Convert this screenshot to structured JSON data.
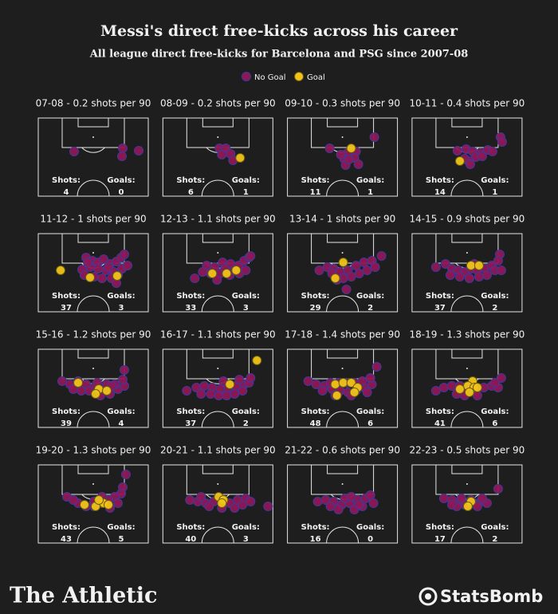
{
  "header": {
    "title": "Messi's direct free-kicks across his career",
    "subtitle": "All league direct free-kicks for Barcelona and PSG since 2007-08"
  },
  "series": [
    {
      "name": "No Goal",
      "color": "#8e1756"
    },
    {
      "name": "Goal",
      "color": "#f0c419"
    }
  ],
  "chart_data": [
    {
      "type": "scatter",
      "title": "07-08 - 0.2 shots per 90",
      "xlim": [
        0,
        138
      ],
      "ylim": [
        0,
        98
      ],
      "shots_label": "Shots:",
      "shots": 4,
      "goals_label": "Goals:",
      "goals": 0,
      "series": [
        {
          "x": [
            45,
            106,
            105,
            126
          ],
          "y": [
            42,
            38,
            48,
            41
          ]
        },
        {
          "x": [],
          "y": []
        }
      ]
    },
    {
      "type": "scatter",
      "title": "08-09 - 0.2 shots per 90",
      "xlim": [
        0,
        138
      ],
      "ylim": [
        0,
        98
      ],
      "shots_label": "Shots:",
      "shots": 6,
      "goals_label": "Goals:",
      "goals": 1,
      "series": [
        {
          "x": [
            71,
            79,
            74,
            85,
            88
          ],
          "y": [
            38,
            38,
            46,
            45,
            53
          ]
        },
        {
          "x": [
            97
          ],
          "y": [
            50
          ]
        }
      ]
    },
    {
      "type": "scatter",
      "title": "09-10 - 0.3 shots per 90",
      "xlim": [
        0,
        138
      ],
      "ylim": [
        0,
        98
      ],
      "shots_label": "Shots:",
      "shots": 11,
      "goals_label": "Goals:",
      "goals": 1,
      "series": [
        {
          "x": [
            109,
            53,
            75,
            86,
            71,
            84,
            73,
            89,
            77,
            67
          ],
          "y": [
            24,
            38,
            44,
            42,
            51,
            50,
            59,
            58,
            52,
            46
          ]
        },
        {
          "x": [
            80
          ],
          "y": [
            38
          ]
        }
      ]
    },
    {
      "type": "scatter",
      "title": "10-11 - 0.4 shots per 90",
      "xlim": [
        0,
        138
      ],
      "ylim": [
        0,
        98
      ],
      "shots_label": "Shots:",
      "shots": 14,
      "goals_label": "Goals:",
      "goals": 1,
      "series": [
        {
          "x": [
            111,
            113,
            57,
            68,
            76,
            86,
            95,
            101,
            80,
            71,
            66,
            88,
            73
          ],
          "y": [
            24,
            30,
            41,
            39,
            42,
            44,
            40,
            42,
            49,
            54,
            51,
            48,
            58
          ]
        },
        {
          "x": [
            60
          ],
          "y": [
            54
          ]
        }
      ]
    },
    {
      "type": "scatter",
      "title": "11-12 - 1 shots per 90",
      "xlim": [
        0,
        138
      ],
      "ylim": [
        0,
        98
      ],
      "shots_label": "Shots:",
      "shots": 37,
      "goals_label": "Goals:",
      "goals": 3,
      "series": [
        {
          "x": [
            60,
            68,
            75,
            82,
            90,
            98,
            104,
            108,
            105,
            95,
            85,
            75,
            65,
            55,
            58,
            70,
            80,
            92,
            100,
            88,
            62,
            112,
            98
          ],
          "y": [
            30,
            34,
            36,
            32,
            38,
            35,
            30,
            26,
            44,
            48,
            46,
            44,
            42,
            45,
            52,
            54,
            56,
            56,
            52,
            42,
            36,
            40,
            62
          ]
        },
        {
          "x": [
            28,
            99,
            65
          ],
          "y": [
            46,
            53,
            55
          ]
        }
      ]
    },
    {
      "type": "scatter",
      "title": "12-13 - 1.1 shots per 90",
      "xlim": [
        0,
        138
      ],
      "ylim": [
        0,
        98
      ],
      "shots_label": "Shots:",
      "shots": 33,
      "goals_label": "Goals:",
      "goals": 3,
      "series": [
        {
          "x": [
            40,
            55,
            65,
            75,
            85,
            95,
            102,
            108,
            110,
            60,
            72,
            84,
            96,
            104,
            78,
            90,
            68,
            50
          ],
          "y": [
            56,
            40,
            42,
            36,
            38,
            40,
            34,
            30,
            28,
            50,
            50,
            52,
            50,
            46,
            44,
            46,
            58,
            48
          ]
        },
        {
          "x": [
            62,
            80,
            92
          ],
          "y": [
            50,
            50,
            46
          ]
        }
      ]
    },
    {
      "type": "scatter",
      "title": "13-14 - 1 shots per 90",
      "xlim": [
        0,
        138
      ],
      "ylim": [
        0,
        98
      ],
      "shots_label": "Shots:",
      "shots": 29,
      "goals_label": "Goals:",
      "goals": 2,
      "series": [
        {
          "x": [
            40,
            50,
            58,
            66,
            76,
            86,
            96,
            106,
            118,
            110,
            100,
            90,
            80,
            70,
            62,
            74,
            56
          ],
          "y": [
            46,
            42,
            44,
            48,
            46,
            40,
            36,
            34,
            28,
            42,
            46,
            50,
            54,
            56,
            58,
            70,
            50
          ]
        },
        {
          "x": [
            70,
            60
          ],
          "y": [
            36,
            56
          ]
        }
      ]
    },
    {
      "type": "scatter",
      "title": "14-15 - 0.9 shots per 90",
      "xlim": [
        0,
        138
      ],
      "ylim": [
        0,
        98
      ],
      "shots_label": "Shots:",
      "shots": 37,
      "goals_label": "Goals:",
      "goals": 2,
      "series": [
        {
          "x": [
            30,
            42,
            50,
            58,
            66,
            74,
            82,
            92,
            100,
            110,
            108,
            104,
            94,
            84,
            72,
            60,
            48,
            112,
            78
          ],
          "y": [
            42,
            38,
            44,
            46,
            48,
            44,
            46,
            44,
            40,
            26,
            34,
            46,
            52,
            54,
            56,
            54,
            52,
            46,
            38
          ]
        },
        {
          "x": [
            74,
            84
          ],
          "y": [
            40,
            40
          ]
        }
      ]
    },
    {
      "type": "scatter",
      "title": "15-16 - 1.2 shots per 90",
      "xlim": [
        0,
        138
      ],
      "ylim": [
        0,
        98
      ],
      "shots_label": "Shots:",
      "shots": 39,
      "goals_label": "Goals:",
      "goals": 4,
      "series": [
        {
          "x": [
            30,
            40,
            50,
            60,
            70,
            80,
            90,
            100,
            108,
            106,
            108,
            96,
            86,
            74,
            64,
            54,
            44,
            78,
            92
          ],
          "y": [
            40,
            44,
            40,
            44,
            48,
            52,
            56,
            50,
            46,
            38,
            26,
            44,
            44,
            42,
            52,
            52,
            50,
            58,
            46
          ]
        },
        {
          "x": [
            50,
            76,
            86,
            72
          ],
          "y": [
            42,
            50,
            52,
            56
          ]
        }
      ]
    },
    {
      "type": "scatter",
      "title": "16-17 - 1.1 shots per 90",
      "xlim": [
        0,
        138
      ],
      "ylim": [
        0,
        98
      ],
      "shots_label": "Shots:",
      "shots": 37,
      "goals_label": "Goals:",
      "goals": 2,
      "series": [
        {
          "x": [
            30,
            42,
            52,
            62,
            72,
            82,
            92,
            102,
            108,
            110,
            100,
            90,
            80,
            70,
            60,
            48,
            76,
            96
          ],
          "y": [
            52,
            48,
            46,
            48,
            50,
            48,
            46,
            44,
            42,
            36,
            52,
            56,
            58,
            58,
            56,
            56,
            40,
            38
          ]
        },
        {
          "x": [
            118,
            84
          ],
          "y": [
            14,
            44
          ]
        }
      ]
    },
    {
      "type": "scatter",
      "title": "17-18 - 1.4 shots per 90",
      "xlim": [
        0,
        138
      ],
      "ylim": [
        0,
        98
      ],
      "shots_label": "Shots:",
      "shots": 48,
      "goals_label": "Goals:",
      "goals": 6,
      "series": [
        {
          "x": [
            26,
            36,
            46,
            56,
            66,
            76,
            86,
            96,
            106,
            112,
            104,
            94,
            84,
            74,
            64,
            54,
            44,
            60,
            80,
            100
          ],
          "y": [
            40,
            44,
            46,
            50,
            52,
            54,
            52,
            48,
            44,
            22,
            36,
            40,
            42,
            42,
            42,
            42,
            52,
            58,
            58,
            54
          ]
        },
        {
          "x": [
            60,
            70,
            80,
            88,
            62,
            84
          ],
          "y": [
            44,
            42,
            42,
            48,
            58,
            54
          ]
        }
      ]
    },
    {
      "type": "scatter",
      "title": "18-19 - 1.3 shots per 90",
      "xlim": [
        0,
        138
      ],
      "ylim": [
        0,
        98
      ],
      "shots_label": "Shots:",
      "shots": 41,
      "goals_label": "Goals:",
      "goals": 6,
      "series": [
        {
          "x": [
            30,
            40,
            50,
            60,
            70,
            80,
            90,
            100,
            108,
            112,
            104,
            82,
            66,
            56
          ],
          "y": [
            52,
            48,
            46,
            46,
            50,
            52,
            48,
            46,
            48,
            36,
            42,
            58,
            58,
            56
          ]
        },
        {
          "x": [
            76,
            70,
            78,
            72,
            82,
            60
          ],
          "y": [
            40,
            46,
            48,
            54,
            48,
            50
          ]
        }
      ]
    },
    {
      "type": "scatter",
      "title": "19-20 - 1.3 shots per 90",
      "xlim": [
        0,
        138
      ],
      "ylim": [
        0,
        98
      ],
      "shots_label": "Shots:",
      "shots": 43,
      "goals_label": "Goals:",
      "goals": 5,
      "series": [
        {
          "x": [
            110,
            106,
            104,
            96,
            88,
            80,
            70,
            60,
            50,
            36,
            44,
            100,
            90,
            70,
            80
          ],
          "y": [
            12,
            28,
            36,
            40,
            44,
            48,
            52,
            52,
            48,
            40,
            44,
            48,
            54,
            46,
            40
          ]
        },
        {
          "x": [
            58,
            72,
            82,
            88,
            76
          ],
          "y": [
            50,
            52,
            48,
            50,
            44
          ]
        }
      ]
    },
    {
      "type": "scatter",
      "title": "20-21 - 1.1 shots per 90",
      "xlim": [
        0,
        138
      ],
      "ylim": [
        0,
        98
      ],
      "shots_label": "Shots:",
      "shots": 40,
      "goals_label": "Goals:",
      "goals": 3,
      "series": [
        {
          "x": [
            34,
            44,
            54,
            64,
            84,
            94,
            104,
            110,
            132,
            58,
            90,
            74,
            100,
            48
          ],
          "y": [
            44,
            46,
            48,
            46,
            48,
            44,
            42,
            46,
            52,
            52,
            54,
            54,
            50,
            40
          ]
        },
        {
          "x": [
            70,
            76,
            74
          ],
          "y": [
            40,
            44,
            48
          ]
        }
      ]
    },
    {
      "type": "scatter",
      "title": "21-22 - 0.6 shots per 90",
      "xlim": [
        0,
        138
      ],
      "ylim": [
        0,
        98
      ],
      "shots_label": "Shots:",
      "shots": 16,
      "goals_label": "Goals:",
      "goals": 0,
      "series": [
        {
          "x": [
            38,
            48,
            58,
            68,
            78,
            88,
            98,
            108,
            104,
            64,
            84,
            94,
            72,
            54,
            80,
            90
          ],
          "y": [
            46,
            44,
            46,
            50,
            48,
            44,
            42,
            48,
            38,
            56,
            56,
            52,
            42,
            52,
            40,
            50
          ]
        },
        {
          "x": [],
          "y": []
        }
      ]
    },
    {
      "type": "scatter",
      "title": "22-23 - 0.5 shots per 90",
      "xlim": [
        0,
        138
      ],
      "ylim": [
        0,
        98
      ],
      "shots_label": "Shots:",
      "shots": 17,
      "goals_label": "Goals:",
      "goals": 2,
      "series": [
        {
          "x": [
            108,
            40,
            50,
            60,
            66,
            78,
            86,
            94,
            56,
            70,
            50,
            62,
            74,
            82,
            88
          ],
          "y": [
            30,
            42,
            44,
            46,
            50,
            48,
            46,
            48,
            52,
            52,
            50,
            42,
            44,
            52,
            42
          ]
        },
        {
          "x": [
            74,
            70
          ],
          "y": [
            46,
            52
          ]
        }
      ]
    }
  ],
  "footer": {
    "brand_left": "The Athletic",
    "brand_right": "StatsBomb"
  }
}
